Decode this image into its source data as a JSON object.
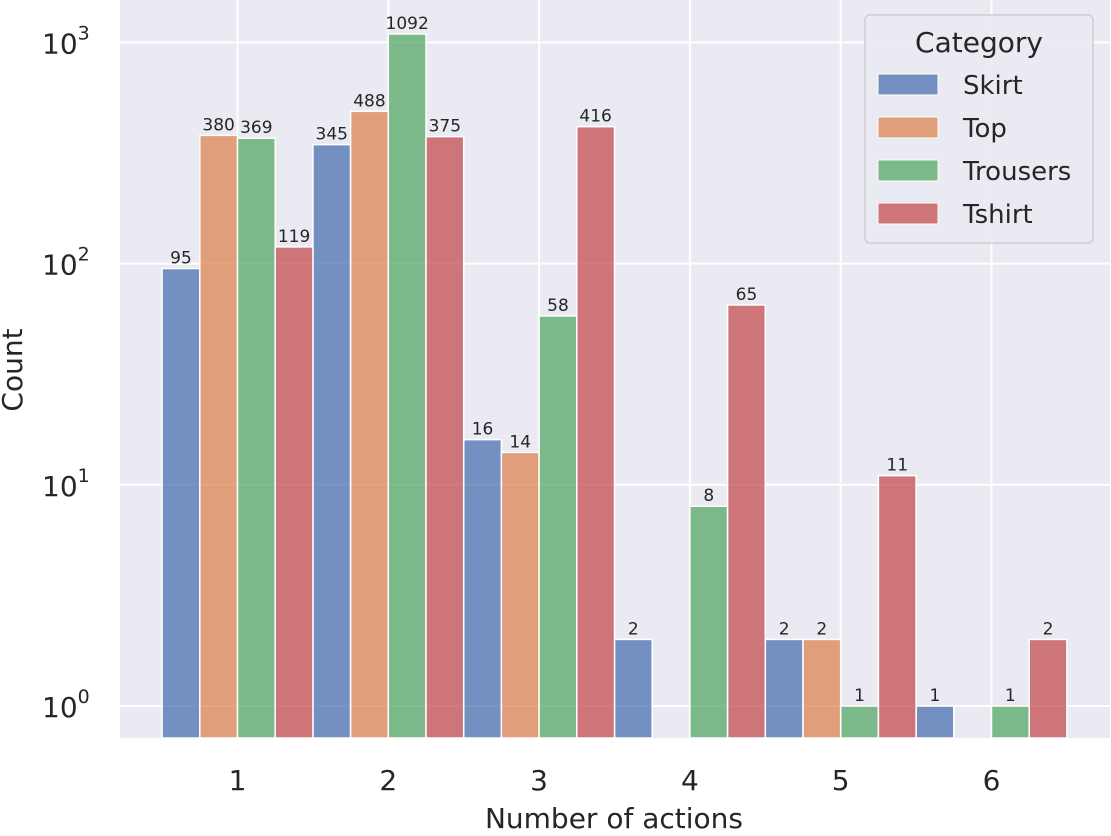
{
  "chart_data": {
    "type": "bar",
    "xlabel": "Number of actions",
    "ylabel": "Count",
    "yscale": "log",
    "ylim": [
      0.86,
      1300
    ],
    "grid": true,
    "categories": [
      "1",
      "2",
      "3",
      "4",
      "5",
      "6"
    ],
    "y_ticks": [
      {
        "value": 1,
        "base": "10",
        "exp": "0"
      },
      {
        "value": 10,
        "base": "10",
        "exp": "1"
      },
      {
        "value": 100,
        "base": "10",
        "exp": "2"
      },
      {
        "value": 1000,
        "base": "10",
        "exp": "3"
      }
    ],
    "legend": {
      "title": "Category",
      "placement": "top-right"
    },
    "series": [
      {
        "name": "Skirt",
        "color": "#4c72b0",
        "values": [
          95,
          345,
          16,
          2,
          2,
          1
        ]
      },
      {
        "name": "Top",
        "color": "#dd8452",
        "values": [
          380,
          488,
          14,
          null,
          2,
          null
        ]
      },
      {
        "name": "Trousers",
        "color": "#55a868",
        "values": [
          369,
          1092,
          58,
          8,
          1,
          1
        ]
      },
      {
        "name": "Tshirt",
        "color": "#c44e52",
        "values": [
          119,
          375,
          416,
          65,
          11,
          2
        ]
      }
    ]
  }
}
